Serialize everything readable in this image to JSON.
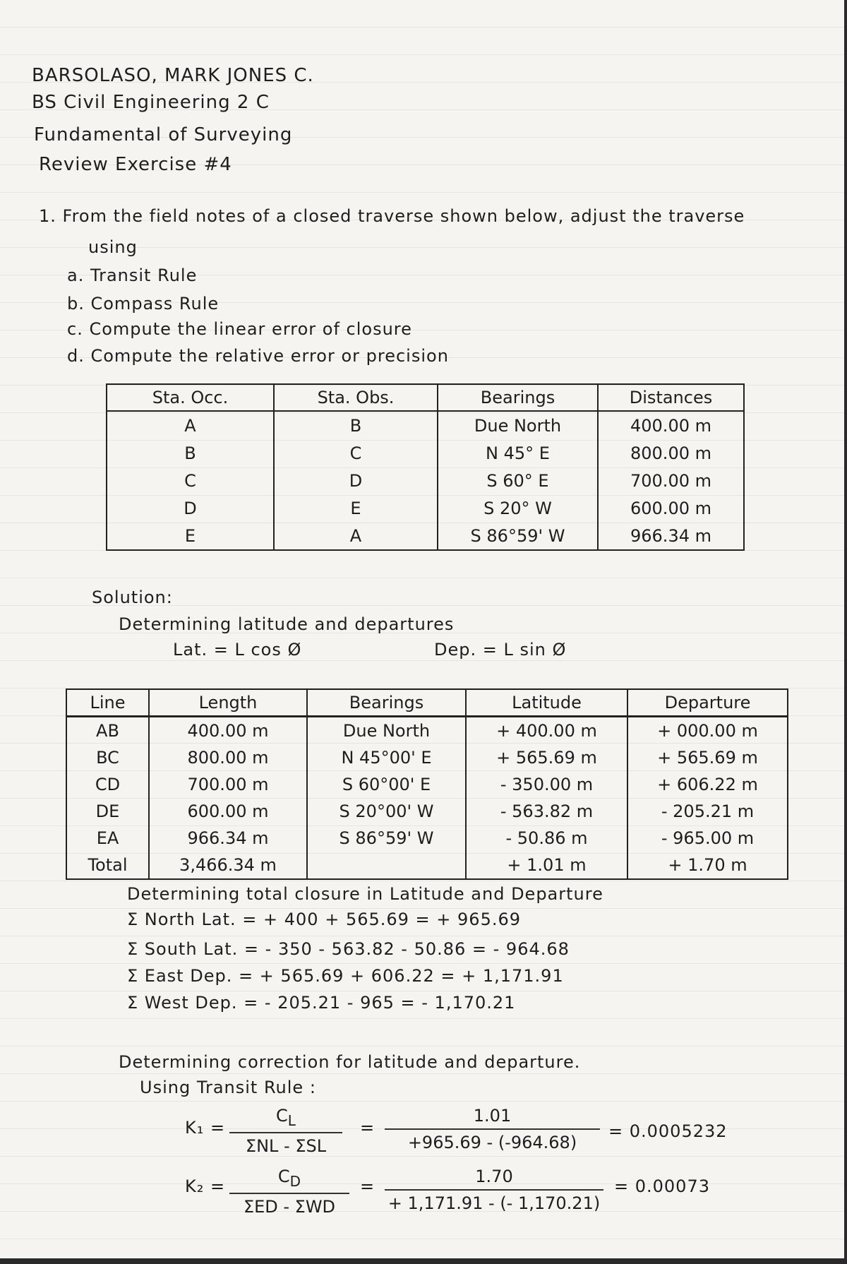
{
  "header": {
    "name": "BARSOLASO, MARK JONES C.",
    "course": "BS Civil Engineering 2 C",
    "subject": "Fundamental of Surveying",
    "exercise": "Review Exercise #4"
  },
  "problem": {
    "statement": "1. From the field notes of a closed traverse shown below, adjust the traverse",
    "statement_cont": "using",
    "items": [
      "a. Transit Rule",
      "b. Compass Rule",
      "c. Compute the linear error of closure",
      "d. Compute the relative error or precision"
    ]
  },
  "field_notes": {
    "headers": [
      "Sta. Occ.",
      "Sta. Obs.",
      "Bearings",
      "Distances"
    ],
    "rows": [
      [
        "A",
        "B",
        "Due North",
        "400.00 m"
      ],
      [
        "B",
        "C",
        "N 45° E",
        "800.00 m"
      ],
      [
        "C",
        "D",
        "S 60° E",
        "700.00 m"
      ],
      [
        "D",
        "E",
        "S 20° W",
        "600.00 m"
      ],
      [
        "E",
        "A",
        "S 86°59' W",
        "966.34 m"
      ]
    ]
  },
  "solution": {
    "label": "Solution:",
    "subtitle": "Determining latitude and departures",
    "lat_formula": "Lat. = L cos Ø",
    "dep_formula": "Dep. = L sin Ø"
  },
  "lat_dep_table": {
    "headers": [
      "Line",
      "Length",
      "Bearings",
      "Latitude",
      "Departure"
    ],
    "rows": [
      [
        "AB",
        "400.00 m",
        "Due North",
        "+ 400.00 m",
        "+ 000.00 m"
      ],
      [
        "BC",
        "800.00 m",
        "N 45°00' E",
        "+ 565.69 m",
        "+ 565.69 m"
      ],
      [
        "CD",
        "700.00 m",
        "S 60°00' E",
        "- 350.00 m",
        "+ 606.22 m"
      ],
      [
        "DE",
        "600.00 m",
        "S 20°00' W",
        "- 563.82 m",
        "- 205.21 m"
      ],
      [
        "EA",
        "966.34 m",
        "S 86°59' W",
        "- 50.86 m",
        "- 965.00 m"
      ],
      [
        "Total",
        "3,466.34 m",
        "",
        "+ 1.01 m",
        "+ 1.70 m"
      ]
    ]
  },
  "closure": {
    "title": "Determining total closure in Latitude and Departure",
    "lines": [
      "Σ North Lat. = + 400 + 565.69 = + 965.69",
      "Σ South Lat. = - 350 - 563.82 - 50.86 = - 964.68",
      "Σ East Dep. = + 565.69 + 606.22 = + 1,171.91",
      "Σ West Dep. = - 205.21 - 965 = - 1,170.21"
    ]
  },
  "correction": {
    "title": "Determining correction for latitude and departure.",
    "method": "Using Transit Rule :",
    "k1": {
      "label": "K₁ =",
      "num": "C",
      "num_sub": "L",
      "den": "ΣNL - ΣSL",
      "eq": "=",
      "val_num": "1.01",
      "val_den": "+965.69 - (-964.68)",
      "result": "= 0.0005232"
    },
    "k2": {
      "label": "K₂ =",
      "num": "C",
      "num_sub": "D",
      "den": "ΣED - ΣWD",
      "eq": "=",
      "val_num": "1.70",
      "val_den": "+ 1,171.91 - (- 1,170.21)",
      "result": "= 0.00073"
    }
  }
}
